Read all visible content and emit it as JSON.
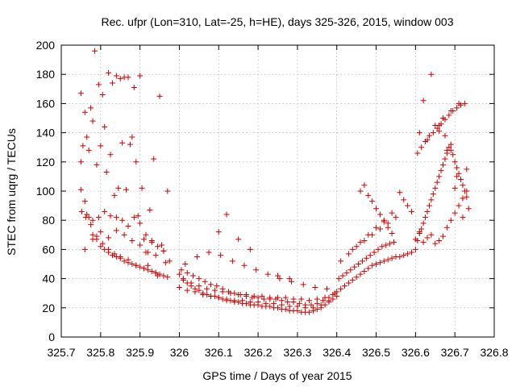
{
  "chart_data": {
    "type": "scatter",
    "title": "Rec. ufpr (Lon=310, Lat=-25, h=HE), days 325-326, 2015, window 003",
    "xlabel": "GPS time / Days of year 2015",
    "ylabel": "STEC from uqrg / TECUs",
    "xlim": [
      325.7,
      326.8
    ],
    "ylim": [
      0,
      200
    ],
    "xticks": [
      325.7,
      325.8,
      325.9,
      326,
      326.1,
      326.2,
      326.3,
      326.4,
      326.5,
      326.6,
      326.7,
      326.8
    ],
    "xtick_labels": [
      "325.7",
      "325.8",
      "325.9",
      "326",
      "326.1",
      "326.2",
      "326.3",
      "326.4",
      "326.5",
      "326.6",
      "326.7",
      "326.8"
    ],
    "yticks": [
      0,
      20,
      40,
      60,
      80,
      100,
      120,
      140,
      160,
      180,
      200
    ],
    "ytick_labels": [
      "0",
      "20",
      "40",
      "60",
      "80",
      "100",
      "120",
      "140",
      "160",
      "180",
      "200"
    ],
    "grid": true,
    "legend": "none",
    "marker": "plus",
    "color": "#cc0000",
    "x": [
      325.75,
      325.755,
      325.76,
      325.765,
      325.77,
      325.775,
      325.78,
      325.785,
      325.79,
      325.795,
      325.8,
      325.805,
      325.81,
      325.815,
      325.82,
      325.825,
      325.83,
      325.835,
      325.84,
      325.845,
      325.85,
      325.855,
      325.86,
      325.865,
      325.87,
      325.875,
      325.88,
      325.885,
      325.89,
      325.895,
      325.9,
      325.905,
      325.91,
      325.915,
      325.92,
      325.925,
      325.93,
      325.935,
      325.94,
      325.945,
      325.95,
      325.955,
      325.96,
      325.965,
      325.97,
      325.75,
      325.76,
      325.77,
      325.78,
      325.79,
      325.8,
      325.81,
      325.82,
      325.83,
      325.84,
      325.85,
      325.86,
      325.87,
      325.88,
      325.89,
      325.9,
      325.91,
      325.92,
      325.93,
      325.94,
      325.95,
      325.96,
      325.75,
      325.765,
      325.78,
      325.795,
      325.81,
      325.825,
      325.84,
      325.855,
      325.87,
      325.885,
      325.9,
      325.915,
      325.93,
      325.945,
      325.96,
      325.975,
      325.76,
      325.78,
      325.8,
      325.82,
      325.84,
      325.86,
      325.88,
      325.9,
      325.92,
      325.752,
      325.762,
      325.775,
      325.79,
      325.805,
      325.82,
      325.835,
      325.85,
      325.87,
      325.89,
      325.91,
      325.94,
      325.97,
      326.0,
      326.01,
      326.02,
      326.03,
      326.04,
      326.05,
      326.06,
      326.07,
      326.08,
      326.09,
      326.1,
      326.11,
      326.12,
      326.13,
      326.14,
      326.15,
      326.16,
      326.17,
      326.18,
      326.19,
      326.2,
      326.21,
      326.22,
      326.23,
      326.24,
      326.25,
      326.26,
      326.27,
      326.28,
      326.29,
      326.3,
      326.31,
      326.32,
      326.33,
      326.34,
      326.35,
      326.36,
      326.37,
      326.38,
      326.39,
      326.4,
      326.005,
      326.02,
      326.035,
      326.05,
      326.065,
      326.08,
      326.095,
      326.11,
      326.125,
      326.14,
      326.155,
      326.17,
      326.185,
      326.2,
      326.215,
      326.23,
      326.245,
      326.26,
      326.275,
      326.29,
      326.305,
      326.32,
      326.335,
      326.35,
      326.365,
      326.38,
      326.395,
      326.01,
      326.03,
      326.05,
      326.07,
      326.09,
      326.11,
      326.13,
      326.15,
      326.17,
      326.19,
      326.21,
      326.23,
      326.25,
      326.27,
      326.29,
      326.31,
      326.33,
      326.35,
      326.37,
      326.39,
      326.0,
      326.02,
      326.04,
      326.06,
      326.08,
      326.1,
      326.12,
      326.14,
      326.16,
      326.18,
      326.2,
      326.22,
      326.24,
      326.26,
      326.28,
      326.3,
      326.32,
      326.34,
      326.36,
      326.38,
      326.015,
      326.045,
      326.075,
      326.105,
      326.135,
      326.165,
      326.195,
      326.225,
      326.255,
      326.285,
      326.315,
      326.345,
      326.375,
      326.1,
      326.12,
      326.15,
      326.18,
      326.25,
      326.28,
      326.4,
      326.41,
      326.42,
      326.43,
      326.44,
      326.45,
      326.46,
      326.47,
      326.48,
      326.49,
      326.5,
      326.51,
      326.52,
      326.53,
      326.54,
      326.55,
      326.56,
      326.57,
      326.58,
      326.59,
      326.405,
      326.415,
      326.425,
      326.435,
      326.445,
      326.455,
      326.465,
      326.475,
      326.485,
      326.495,
      326.505,
      326.515,
      326.525,
      326.535,
      326.545,
      326.41,
      326.43,
      326.45,
      326.47,
      326.49,
      326.51,
      326.53,
      326.55,
      326.44,
      326.46,
      326.48,
      326.5,
      326.52,
      326.54,
      326.46,
      326.47,
      326.48,
      326.49,
      326.5,
      326.51,
      326.52,
      326.53,
      326.54,
      326.56,
      326.57,
      326.58,
      326.59,
      326.6,
      326.605,
      326.61,
      326.615,
      326.62,
      326.625,
      326.63,
      326.635,
      326.64,
      326.645,
      326.65,
      326.655,
      326.66,
      326.665,
      326.67,
      326.675,
      326.68,
      326.685,
      326.69,
      326.695,
      326.7,
      326.705,
      326.71,
      326.715,
      326.72,
      326.725,
      326.73,
      326.6,
      326.61,
      326.62,
      326.63,
      326.64,
      326.65,
      326.66,
      326.67,
      326.68,
      326.69,
      326.7,
      326.71,
      326.72,
      326.73,
      326.605,
      326.615,
      326.625,
      326.635,
      326.645,
      326.655,
      326.665,
      326.675,
      326.685,
      326.695,
      326.705,
      326.715,
      326.725,
      326.61,
      326.63,
      326.65,
      326.67,
      326.69,
      326.71,
      326.73,
      326.62,
      326.64,
      326.66,
      326.68,
      326.7,
      326.72,
      326.66,
      326.675,
      326.69,
      326.705,
      326.72,
      326.735
    ],
    "y": [
      167,
      131,
      154,
      137,
      128,
      157,
      148,
      196,
      118,
      173,
      131,
      166,
      144,
      113,
      181,
      125,
      174,
      97,
      179,
      102,
      177,
      133,
      178,
      101,
      178,
      132,
      137,
      171,
      120,
      83,
      179,
      102,
      67,
      58,
      49,
      87,
      66,
      122,
      56,
      42,
      165,
      63,
      59,
      51,
      100,
      120,
      93,
      82,
      70,
      67,
      62,
      60,
      58,
      56,
      55,
      54,
      52,
      51,
      50,
      49,
      48,
      47,
      46,
      45,
      44,
      43,
      42,
      101,
      84,
      80,
      82,
      86,
      83,
      82,
      80,
      76,
      82,
      78,
      70,
      65,
      62,
      59,
      52,
      60,
      67,
      72,
      68,
      73,
      70,
      66,
      63,
      58,
      86,
      82,
      77,
      69,
      64,
      60,
      57,
      55,
      53,
      49,
      47,
      44,
      41,
      43,
      40,
      37,
      35,
      33,
      32,
      30,
      29,
      28,
      28,
      27,
      26,
      25,
      25,
      24,
      24,
      23,
      23,
      22,
      22,
      22,
      21,
      21,
      21,
      20,
      20,
      19,
      19,
      18,
      18,
      18,
      17,
      17,
      17,
      18,
      19,
      20,
      22,
      24,
      26,
      28,
      46,
      44,
      42,
      40,
      38,
      36,
      35,
      33,
      31,
      30,
      29,
      28,
      27,
      27,
      26,
      26,
      26,
      25,
      24,
      24,
      23,
      22,
      22,
      23,
      25,
      27,
      30,
      39,
      37,
      35,
      33,
      32,
      31,
      30,
      29,
      29,
      28,
      28,
      27,
      27,
      27,
      26,
      26,
      25,
      26,
      27,
      29,
      34,
      32,
      31,
      29,
      28,
      27,
      26,
      25,
      25,
      24,
      24,
      23,
      23,
      22,
      21,
      21,
      20,
      20,
      22,
      25,
      50,
      55,
      58,
      56,
      52,
      49,
      46,
      43,
      40,
      38,
      36,
      34,
      33,
      72,
      84,
      67,
      60,
      42,
      40,
      31,
      33,
      35,
      37,
      39,
      41,
      43,
      45,
      47,
      49,
      50,
      51,
      52,
      53,
      54,
      55,
      55,
      56,
      57,
      58,
      40,
      42,
      44,
      46,
      48,
      50,
      52,
      54,
      56,
      58,
      60,
      62,
      63,
      64,
      65,
      52,
      57,
      62,
      66,
      70,
      74,
      78,
      82,
      60,
      65,
      70,
      75,
      80,
      85,
      100,
      104,
      97,
      93,
      88,
      84,
      79,
      75,
      71,
      99,
      94,
      90,
      86,
      60,
      66,
      71,
      74,
      78,
      82,
      86,
      90,
      94,
      98,
      102,
      106,
      110,
      114,
      118,
      122,
      126,
      130,
      128,
      125,
      120,
      116,
      112,
      108,
      104,
      100,
      96,
      67,
      72,
      65,
      68,
      70,
      64,
      66,
      69,
      75,
      80,
      85,
      90,
      95,
      100,
      126,
      130,
      134,
      138,
      140,
      143,
      146,
      149,
      152,
      155,
      157,
      159,
      160,
      140,
      135,
      145,
      150,
      155,
      160,
      115,
      162,
      180,
      141,
      128,
      102,
      82,
      145,
      138,
      132,
      110,
      95,
      88
    ]
  }
}
